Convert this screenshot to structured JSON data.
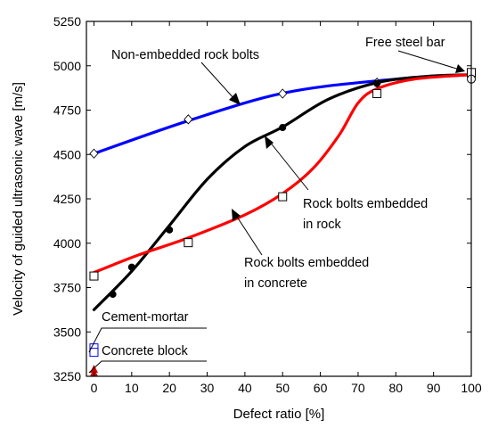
{
  "chart_data": {
    "type": "line",
    "xlabel": "Defect ratio [%]",
    "ylabel": "Velocity of guided ultrasonic wave [m/s]",
    "xlim": [
      -2,
      100
    ],
    "ylim": [
      3250,
      5250
    ],
    "x_ticks": [
      0,
      10,
      20,
      30,
      40,
      50,
      60,
      70,
      80,
      90,
      100
    ],
    "y_ticks": [
      3250,
      3500,
      3750,
      4000,
      4250,
      4500,
      4750,
      5000,
      5250
    ],
    "grid": false,
    "legend": "none",
    "series": [
      {
        "name": "Non-embedded rock bolts",
        "color": "#0000ff",
        "marker": "diamond",
        "points": [
          [
            0,
            4505
          ],
          [
            25,
            4698
          ],
          [
            50,
            4843
          ],
          [
            75,
            4905
          ],
          [
            100,
            4950
          ]
        ]
      },
      {
        "name": "Rock bolts embedded in rock",
        "color": "#000000",
        "marker": "circle-filled",
        "points": [
          [
            5,
            3712
          ],
          [
            10,
            3865
          ],
          [
            20,
            4075
          ],
          [
            50,
            4652
          ],
          [
            75,
            4900
          ],
          [
            100,
            4950
          ]
        ]
      },
      {
        "name": "Rock bolts embedded in concrete",
        "color": "#ff0000",
        "marker": "square",
        "points": [
          [
            0,
            3815
          ],
          [
            25,
            4003
          ],
          [
            50,
            4262
          ],
          [
            75,
            4843
          ],
          [
            100,
            4958
          ]
        ]
      }
    ],
    "curves": [
      {
        "series": "Non-embedded rock bolts",
        "color": "#0000ff",
        "points": [
          [
            0,
            4505
          ],
          [
            25,
            4690
          ],
          [
            50,
            4845
          ],
          [
            75,
            4915
          ],
          [
            100,
            4950
          ]
        ]
      },
      {
        "series": "Rock bolts embedded in rock",
        "color": "#000000",
        "points": [
          [
            0,
            3625
          ],
          [
            10,
            3842
          ],
          [
            20,
            4100
          ],
          [
            30,
            4360
          ],
          [
            40,
            4545
          ],
          [
            50,
            4655
          ],
          [
            62,
            4810
          ],
          [
            75,
            4905
          ],
          [
            88,
            4940
          ],
          [
            100,
            4950
          ]
        ]
      },
      {
        "series": "Rock bolts embedded in concrete",
        "color": "#ff0000",
        "points": [
          [
            0,
            3835
          ],
          [
            12,
            3935
          ],
          [
            25,
            4030
          ],
          [
            40,
            4160
          ],
          [
            50,
            4280
          ],
          [
            58,
            4420
          ],
          [
            65,
            4610
          ],
          [
            70,
            4790
          ],
          [
            75,
            4870
          ],
          [
            85,
            4925
          ],
          [
            100,
            4950
          ]
        ]
      }
    ],
    "reference_points": [
      {
        "name": "Cement-mortar",
        "color": "#0000ff",
        "marker": "square",
        "points": [
          [
            0,
            3410
          ],
          [
            0,
            3385
          ]
        ]
      },
      {
        "name": "Concrete block",
        "color": "#cc0000",
        "marker": "triangle-filled",
        "points": [
          [
            0,
            3290
          ],
          [
            0,
            3270
          ]
        ]
      },
      {
        "name": "Free steel bar",
        "color": "#000000",
        "marker": "square-circle",
        "points": [
          [
            100,
            4962
          ],
          [
            100,
            4925
          ]
        ]
      }
    ],
    "annotations": [
      {
        "lines": [
          "Non-embedded rock bolts"
        ]
      },
      {
        "lines": [
          "Free steel bar"
        ]
      },
      {
        "lines": [
          "Rock bolts embedded",
          "in rock"
        ]
      },
      {
        "lines": [
          "Rock bolts embedded",
          "in concrete"
        ]
      },
      {
        "lines": [
          "Cement-mortar"
        ]
      },
      {
        "lines": [
          "Concrete block"
        ]
      }
    ]
  }
}
